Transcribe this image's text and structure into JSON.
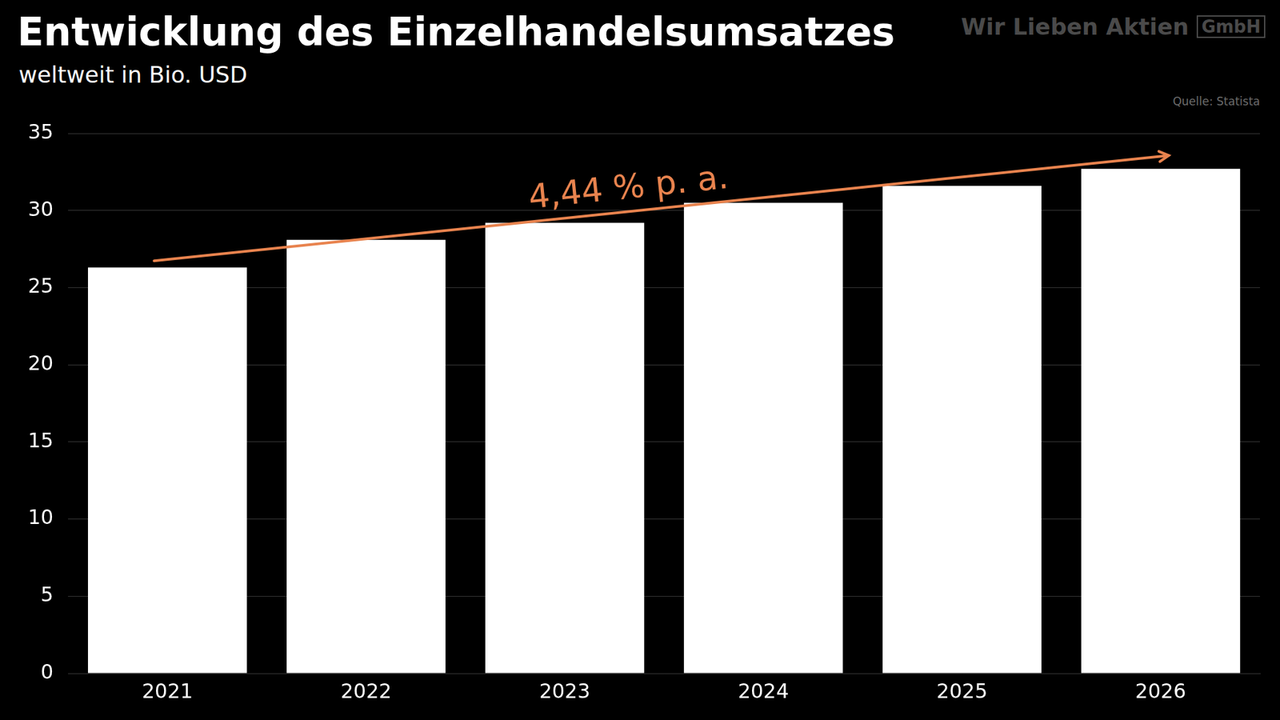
{
  "chart_data": {
    "type": "bar",
    "title": "Entwicklung des Einzelhandelsumsatzes",
    "subtitle": "weltweit in Bio. USD",
    "source": "Quelle: Statista",
    "brand": "Wir Lieben Aktien",
    "brand_suffix": "GmbH",
    "annotation": "4,44 % p. a.",
    "annotation_color": "#e8834e",
    "categories": [
      "2021",
      "2022",
      "2023",
      "2024",
      "2025",
      "2026"
    ],
    "values": [
      26.3,
      28.1,
      29.2,
      30.5,
      31.6,
      32.7
    ],
    "color": "#ffffff",
    "ylim": [
      0,
      35
    ],
    "yticks": [
      0,
      5,
      10,
      15,
      20,
      25,
      30,
      35
    ],
    "grid": true
  }
}
